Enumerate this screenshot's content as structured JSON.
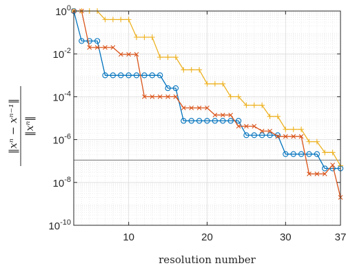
{
  "chart_data": {
    "type": "line",
    "xlabel": "resolution number",
    "ylabel": {
      "num": "‖xⁿ − xⁿ⁻¹‖",
      "den": "‖xⁿ‖"
    },
    "yscale": "log",
    "xlim": [
      3,
      37
    ],
    "ylim": [
      1e-10,
      1
    ],
    "xticks": [
      10,
      20,
      30,
      37
    ],
    "xtick_labels": [
      "10",
      "20",
      "30",
      "37"
    ],
    "yticks": [
      -10,
      -8,
      -6,
      -4,
      -2,
      0
    ],
    "ytick_labels": [
      "10",
      "10",
      "10",
      "10",
      "10",
      "10"
    ],
    "ytick_exponents": [
      "-10",
      "-8",
      "-6",
      "-4",
      "-2",
      "0"
    ],
    "grid": true,
    "minor_grid": true,
    "reference_line": {
      "y": 1.1e-07
    },
    "series": [
      {
        "color": "#0072BD",
        "marker": "circle",
        "x": [
          3,
          4,
          5,
          6,
          7,
          8,
          9,
          10,
          11,
          12,
          13,
          14,
          15,
          16,
          17,
          18,
          19,
          20,
          21,
          22,
          23,
          24,
          25,
          26,
          27,
          28,
          29,
          30,
          31,
          32,
          33,
          34,
          35,
          36,
          37
        ],
        "y": [
          1,
          0.04,
          0.04,
          0.04,
          0.001,
          0.001,
          0.001,
          0.001,
          0.001,
          0.001,
          0.001,
          0.001,
          0.00025,
          0.00025,
          7.5e-06,
          7.5e-06,
          7.5e-06,
          7.5e-06,
          7.5e-06,
          7.5e-06,
          7.5e-06,
          7.5e-06,
          1.6e-06,
          1.6e-06,
          1.6e-06,
          1.6e-06,
          1.6e-06,
          2.1e-07,
          2.1e-07,
          2.1e-07,
          2.1e-07,
          2.1e-07,
          4.5e-08,
          4.5e-08,
          4.5e-08
        ]
      },
      {
        "color": "#D95319",
        "marker": "x",
        "x": [
          3,
          4,
          5,
          6,
          7,
          8,
          9,
          10,
          11,
          12,
          13,
          14,
          15,
          16,
          17,
          18,
          19,
          20,
          21,
          22,
          23,
          24,
          25,
          26,
          27,
          28,
          29,
          30,
          31,
          32,
          33,
          34,
          35,
          36,
          37
        ],
        "y": [
          1,
          1,
          0.02,
          0.02,
          0.02,
          0.02,
          0.0095,
          0.0095,
          0.0095,
          0.0001,
          0.0001,
          0.0001,
          0.0001,
          0.0001,
          3e-05,
          3e-05,
          3e-05,
          3e-05,
          1.4e-05,
          1.4e-05,
          1.4e-05,
          4.2e-06,
          4.2e-06,
          4.2e-06,
          2.5e-06,
          2.5e-06,
          1.4e-06,
          1.4e-06,
          1.4e-06,
          1.4e-06,
          2.5e-08,
          2.5e-08,
          2.5e-08,
          6.5e-08,
          2e-09
        ]
      },
      {
        "color": "#EDB120",
        "marker": "plus",
        "x": [
          3,
          4,
          5,
          6,
          7,
          8,
          9,
          10,
          11,
          12,
          13,
          14,
          15,
          16,
          17,
          18,
          19,
          20,
          21,
          22,
          23,
          24,
          25,
          26,
          27,
          28,
          29,
          30,
          31,
          32,
          33,
          34,
          35,
          36,
          37
        ],
        "y": [
          1,
          1,
          1,
          1,
          0.4,
          0.4,
          0.4,
          0.4,
          0.06,
          0.06,
          0.06,
          0.007,
          0.007,
          0.007,
          0.0018,
          0.0018,
          0.0018,
          0.0004,
          0.0004,
          0.0004,
          0.0001,
          0.0001,
          4e-05,
          4e-05,
          4e-05,
          1.2e-05,
          1.2e-05,
          3e-06,
          3e-06,
          3e-06,
          8e-07,
          8e-07,
          2.5e-07,
          2.5e-07,
          6e-08
        ]
      }
    ]
  }
}
